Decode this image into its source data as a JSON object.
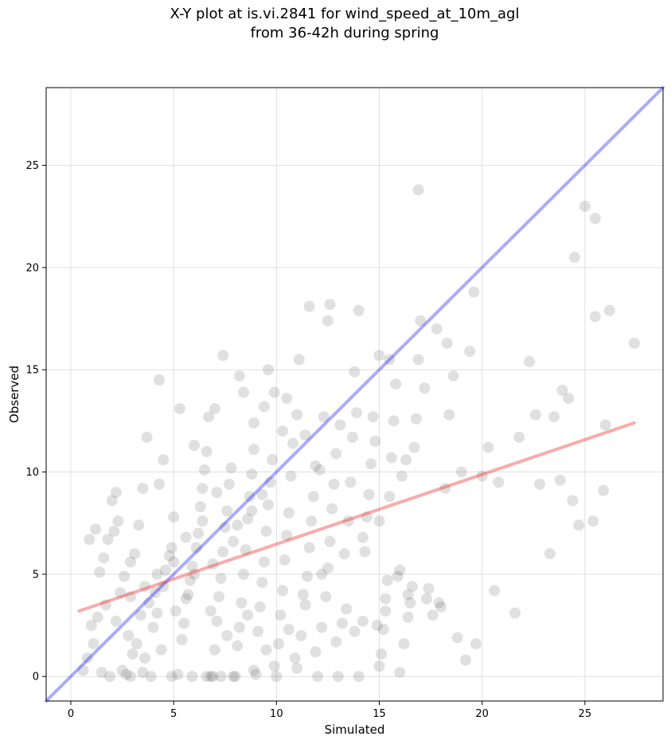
{
  "chart_data": {
    "type": "scatter",
    "title_line1": "X-Y plot at is.vi.2841 for wind_speed_at_10m_agl",
    "title_line2": "from 36-42h during spring",
    "xlabel": "Simulated",
    "ylabel": "Observed",
    "xlim": [
      -1.2,
      28.8
    ],
    "ylim": [
      -1.2,
      28.8
    ],
    "xticks": [
      0,
      5,
      10,
      15,
      20,
      25
    ],
    "yticks": [
      0,
      5,
      10,
      15,
      20,
      25
    ],
    "grid": true,
    "colors": {
      "points": "#555555",
      "one_to_one": "#0000ee",
      "regression": "#ee2222"
    },
    "one_to_one_line": {
      "x": [
        -1.2,
        28.8
      ],
      "y": [
        -1.2,
        28.8
      ]
    },
    "regression_line": {
      "x": [
        0.4,
        27.4
      ],
      "y": [
        3.2,
        12.4
      ]
    },
    "points": [
      [
        0.6,
        0.3
      ],
      [
        0.8,
        0.9
      ],
      [
        1.0,
        2.5
      ],
      [
        1.2,
        7.2
      ],
      [
        0.9,
        6.7
      ],
      [
        1.4,
        5.1
      ],
      [
        1.6,
        5.8
      ],
      [
        1.8,
        6.7
      ],
      [
        2.0,
        8.6
      ],
      [
        2.2,
        9.0
      ],
      [
        2.3,
        7.6
      ],
      [
        2.1,
        7.1
      ],
      [
        1.5,
        0.2
      ],
      [
        1.9,
        0.0
      ],
      [
        2.5,
        0.3
      ],
      [
        2.7,
        0.1
      ],
      [
        3.0,
        1.1
      ],
      [
        3.2,
        1.6
      ],
      [
        3.5,
        0.2
      ],
      [
        3.6,
        0.9
      ],
      [
        1.1,
        1.6
      ],
      [
        1.3,
        2.9
      ],
      [
        1.7,
        3.5
      ],
      [
        2.4,
        4.1
      ],
      [
        2.6,
        4.9
      ],
      [
        2.9,
        5.6
      ],
      [
        3.1,
        6.0
      ],
      [
        3.3,
        7.4
      ],
      [
        3.5,
        9.2
      ],
      [
        3.7,
        11.7
      ],
      [
        4.0,
        2.4
      ],
      [
        4.2,
        3.1
      ],
      [
        4.4,
        1.3
      ],
      [
        4.5,
        4.4
      ],
      [
        4.6,
        5.2
      ],
      [
        4.8,
        5.9
      ],
      [
        4.9,
        6.3
      ],
      [
        5.0,
        7.8
      ],
      [
        4.3,
        9.4
      ],
      [
        4.5,
        10.6
      ],
      [
        4.3,
        14.5
      ],
      [
        5.2,
        0.1
      ],
      [
        5.4,
        1.8
      ],
      [
        5.5,
        2.6
      ],
      [
        5.6,
        3.8
      ],
      [
        5.8,
        4.7
      ],
      [
        5.9,
        5.4
      ],
      [
        6.1,
        6.3
      ],
      [
        6.2,
        7.0
      ],
      [
        6.3,
        8.3
      ],
      [
        6.4,
        9.2
      ],
      [
        6.5,
        10.1
      ],
      [
        6.6,
        11.0
      ],
      [
        6.8,
        0.0
      ],
      [
        6.9,
        0.0
      ],
      [
        7.0,
        1.3
      ],
      [
        7.1,
        2.7
      ],
      [
        7.2,
        3.9
      ],
      [
        7.3,
        4.8
      ],
      [
        7.4,
        6.1
      ],
      [
        7.5,
        7.3
      ],
      [
        7.6,
        8.1
      ],
      [
        7.7,
        9.4
      ],
      [
        7.8,
        10.2
      ],
      [
        7.4,
        15.7
      ],
      [
        7.0,
        13.1
      ],
      [
        8.0,
        0.0
      ],
      [
        8.1,
        1.5
      ],
      [
        8.2,
        2.4
      ],
      [
        8.3,
        3.6
      ],
      [
        8.4,
        5.0
      ],
      [
        8.5,
        6.2
      ],
      [
        8.6,
        7.7
      ],
      [
        8.7,
        8.8
      ],
      [
        8.8,
        9.9
      ],
      [
        8.9,
        11.1
      ],
      [
        8.4,
        13.9
      ],
      [
        9.0,
        0.1
      ],
      [
        9.1,
        2.2
      ],
      [
        9.2,
        3.4
      ],
      [
        9.3,
        4.6
      ],
      [
        9.4,
        5.6
      ],
      [
        9.5,
        7.1
      ],
      [
        9.6,
        8.4
      ],
      [
        9.7,
        9.5
      ],
      [
        9.8,
        10.6
      ],
      [
        9.6,
        15.0
      ],
      [
        9.4,
        13.2
      ],
      [
        10.0,
        0.0
      ],
      [
        10.1,
        1.6
      ],
      [
        10.2,
        3.0
      ],
      [
        10.3,
        4.2
      ],
      [
        10.4,
        5.7
      ],
      [
        10.5,
        6.9
      ],
      [
        10.6,
        8.0
      ],
      [
        10.7,
        9.8
      ],
      [
        10.8,
        11.4
      ],
      [
        10.5,
        13.6
      ],
      [
        11.0,
        0.4
      ],
      [
        11.2,
        2.0
      ],
      [
        11.4,
        3.5
      ],
      [
        11.5,
        4.9
      ],
      [
        11.6,
        6.3
      ],
      [
        11.7,
        7.6
      ],
      [
        11.8,
        8.8
      ],
      [
        11.9,
        10.3
      ],
      [
        11.0,
        12.8
      ],
      [
        11.1,
        15.5
      ],
      [
        12.0,
        0.0
      ],
      [
        12.2,
        2.4
      ],
      [
        12.4,
        3.9
      ],
      [
        12.5,
        5.3
      ],
      [
        12.6,
        6.6
      ],
      [
        12.7,
        8.2
      ],
      [
        12.8,
        9.4
      ],
      [
        12.9,
        10.9
      ],
      [
        11.6,
        18.1
      ],
      [
        12.6,
        18.2
      ],
      [
        12.5,
        17.4
      ],
      [
        13.0,
        0.0
      ],
      [
        13.2,
        2.6
      ],
      [
        13.4,
        3.3
      ],
      [
        13.5,
        7.6
      ],
      [
        13.6,
        9.5
      ],
      [
        13.7,
        11.7
      ],
      [
        13.8,
        14.9
      ],
      [
        14.0,
        0.0
      ],
      [
        14.2,
        2.7
      ],
      [
        14.3,
        6.1
      ],
      [
        14.4,
        7.8
      ],
      [
        14.5,
        8.9
      ],
      [
        14.6,
        10.4
      ],
      [
        14.7,
        12.7
      ],
      [
        14.0,
        17.9
      ],
      [
        15.0,
        0.5
      ],
      [
        15.1,
        1.1
      ],
      [
        15.2,
        2.3
      ],
      [
        15.3,
        3.8
      ],
      [
        15.4,
        4.7
      ],
      [
        15.5,
        8.8
      ],
      [
        15.6,
        10.7
      ],
      [
        15.7,
        12.5
      ],
      [
        15.8,
        14.3
      ],
      [
        15.0,
        15.7
      ],
      [
        15.5,
        15.5
      ],
      [
        16.0,
        0.2
      ],
      [
        16.2,
        1.6
      ],
      [
        16.4,
        2.9
      ],
      [
        16.5,
        3.6
      ],
      [
        16.6,
        4.4
      ],
      [
        16.7,
        11.2
      ],
      [
        16.8,
        12.6
      ],
      [
        16.9,
        15.5
      ],
      [
        16.9,
        23.8
      ],
      [
        17.0,
        17.4
      ],
      [
        17.2,
        14.1
      ],
      [
        17.4,
        4.3
      ],
      [
        17.6,
        3.0
      ],
      [
        17.8,
        17.0
      ],
      [
        18.0,
        3.4
      ],
      [
        18.2,
        9.2
      ],
      [
        18.3,
        16.3
      ],
      [
        18.4,
        12.8
      ],
      [
        18.6,
        14.7
      ],
      [
        18.8,
        1.9
      ],
      [
        19.0,
        10.0
      ],
      [
        19.2,
        0.8
      ],
      [
        19.4,
        15.9
      ],
      [
        19.6,
        18.8
      ],
      [
        19.7,
        1.6
      ],
      [
        20.0,
        9.8
      ],
      [
        20.3,
        11.2
      ],
      [
        20.6,
        4.2
      ],
      [
        20.8,
        9.5
      ],
      [
        21.6,
        3.1
      ],
      [
        21.8,
        11.7
      ],
      [
        22.3,
        15.4
      ],
      [
        22.6,
        12.8
      ],
      [
        22.8,
        9.4
      ],
      [
        23.3,
        6.0
      ],
      [
        23.5,
        12.7
      ],
      [
        23.8,
        9.6
      ],
      [
        23.9,
        14.0
      ],
      [
        24.2,
        13.6
      ],
      [
        24.4,
        8.6
      ],
      [
        24.5,
        20.5
      ],
      [
        24.7,
        7.4
      ],
      [
        25.0,
        23.0
      ],
      [
        25.4,
        7.6
      ],
      [
        25.5,
        17.6
      ],
      [
        25.5,
        22.4
      ],
      [
        25.9,
        9.1
      ],
      [
        26.0,
        12.3
      ],
      [
        26.2,
        17.9
      ],
      [
        27.4,
        16.3
      ],
      [
        5.3,
        13.1
      ],
      [
        6.0,
        11.3
      ],
      [
        6.7,
        12.7
      ],
      [
        8.2,
        14.7
      ],
      [
        8.9,
        12.4
      ],
      [
        9.9,
        13.9
      ],
      [
        10.3,
        12.0
      ],
      [
        11.4,
        11.8
      ],
      [
        12.1,
        10.1
      ],
      [
        12.3,
        12.7
      ],
      [
        13.1,
        12.3
      ],
      [
        13.9,
        12.9
      ],
      [
        14.8,
        11.5
      ],
      [
        16.3,
        10.6
      ],
      [
        16.1,
        9.8
      ],
      [
        17.3,
        3.8
      ],
      [
        17.9,
        3.6
      ],
      [
        16.0,
        5.2
      ],
      [
        16.4,
        4.0
      ],
      [
        15.9,
        4.9
      ],
      [
        15.3,
        3.2
      ],
      [
        14.9,
        2.5
      ],
      [
        13.8,
        2.2
      ],
      [
        12.9,
        1.7
      ],
      [
        11.9,
        1.2
      ],
      [
        10.9,
        0.9
      ],
      [
        9.9,
        0.5
      ],
      [
        8.9,
        0.3
      ],
      [
        7.9,
        0.0
      ],
      [
        7.3,
        0.0
      ],
      [
        6.6,
        0.0
      ],
      [
        5.9,
        0.0
      ],
      [
        4.9,
        0.0
      ],
      [
        3.9,
        0.0
      ],
      [
        2.9,
        0.0
      ],
      [
        3.4,
        3.0
      ],
      [
        3.8,
        3.6
      ],
      [
        4.1,
        4.1
      ],
      [
        2.8,
        2.0
      ],
      [
        2.2,
        2.7
      ],
      [
        5.1,
        3.2
      ],
      [
        5.7,
        4.0
      ],
      [
        6.0,
        5.0
      ],
      [
        6.9,
        5.5
      ],
      [
        7.9,
        6.6
      ],
      [
        8.1,
        7.4
      ],
      [
        8.8,
        8.1
      ],
      [
        9.3,
        8.9
      ],
      [
        7.1,
        9.0
      ],
      [
        6.4,
        7.6
      ],
      [
        5.6,
        6.8
      ],
      [
        5.0,
        5.6
      ],
      [
        4.2,
        5.0
      ],
      [
        3.6,
        4.4
      ],
      [
        2.9,
        3.9
      ],
      [
        6.8,
        3.2
      ],
      [
        7.6,
        2.0
      ],
      [
        8.6,
        3.0
      ],
      [
        9.5,
        1.3
      ],
      [
        10.6,
        2.3
      ],
      [
        11.3,
        4.0
      ],
      [
        12.2,
        5.0
      ],
      [
        13.3,
        6.0
      ],
      [
        14.2,
        6.8
      ],
      [
        15.0,
        7.6
      ]
    ]
  }
}
